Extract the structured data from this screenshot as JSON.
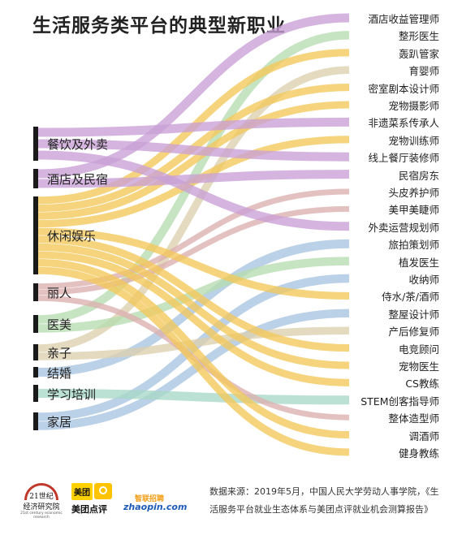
{
  "title": "生活服务类平台的典型新职业",
  "sources": [
    {
      "name": "餐饮及外卖",
      "color": "#1a1a1a"
    },
    {
      "name": "酒店及民宿",
      "color": "#1a1a1a"
    },
    {
      "name": "休闲娱乐",
      "color": "#1a1a1a"
    },
    {
      "name": "丽人",
      "color": "#1a1a1a"
    },
    {
      "name": "医美",
      "color": "#1a1a1a"
    },
    {
      "name": "亲子",
      "color": "#1a1a1a"
    },
    {
      "name": "结婚",
      "color": "#1a1a1a"
    },
    {
      "name": "学习培训",
      "color": "#1a1a1a"
    },
    {
      "name": "家居",
      "color": "#1a1a1a"
    }
  ],
  "targets": [
    "酒店收益管理师",
    "整形医生",
    "轰趴管家",
    "育婴师",
    "密室剧本设计师",
    "宠物摄影师",
    "非遗菜系传承人",
    "宠物训练师",
    "线上餐厅装修师",
    "民宿房东",
    "头皮养护师",
    "美甲美睫师",
    "外卖运营规划师",
    "旅拍策划师",
    "植发医生",
    "收纳师",
    "侍水/茶/酒师",
    "整屋设计师",
    "产后修复师",
    "电竞顾问",
    "宠物医生",
    "CS教练",
    "STEM创客指导师",
    "整体造型师",
    "调酒师",
    "健身教练"
  ],
  "links": [
    {
      "source": "酒店及民宿",
      "target": "酒店收益管理师",
      "color": "#c9a0d6"
    },
    {
      "source": "医美",
      "target": "整形医生",
      "color": "#b6ddb0"
    },
    {
      "source": "休闲娱乐",
      "target": "轰趴管家",
      "color": "#f3c85a"
    },
    {
      "source": "亲子",
      "target": "育婴师",
      "color": "#ddd0ae"
    },
    {
      "source": "休闲娱乐",
      "target": "密室剧本设计师",
      "color": "#f3c85a"
    },
    {
      "source": "休闲娱乐",
      "target": "宠物摄影师",
      "color": "#f3c85a"
    },
    {
      "source": "餐饮及外卖",
      "target": "非遗菜系传承人",
      "color": "#c9a0d6"
    },
    {
      "source": "休闲娱乐",
      "target": "宠物训练师",
      "color": "#f3c85a"
    },
    {
      "source": "餐饮及外卖",
      "target": "线上餐厅装修师",
      "color": "#c9a0d6"
    },
    {
      "source": "酒店及民宿",
      "target": "民宿房东",
      "color": "#c9a0d6"
    },
    {
      "source": "丽人",
      "target": "头皮养护师",
      "color": "#dcb0b0"
    },
    {
      "source": "丽人",
      "target": "美甲美睫师",
      "color": "#dcb0b0"
    },
    {
      "source": "餐饮及外卖",
      "target": "外卖运营规划师",
      "color": "#c9a0d6"
    },
    {
      "source": "结婚",
      "target": "旅拍策划师",
      "color": "#a8c4e0"
    },
    {
      "source": "医美",
      "target": "植发医生",
      "color": "#b6ddb0"
    },
    {
      "source": "家居",
      "target": "收纳师",
      "color": "#a8c4e0"
    },
    {
      "source": "休闲娱乐",
      "target": "侍水/茶/酒师",
      "color": "#f3c85a"
    },
    {
      "source": "家居",
      "target": "整屋设计师",
      "color": "#a8c4e0"
    },
    {
      "source": "亲子",
      "target": "产后修复师",
      "color": "#ddd0ae"
    },
    {
      "source": "休闲娱乐",
      "target": "电竞顾问",
      "color": "#f3c85a"
    },
    {
      "source": "休闲娱乐",
      "target": "宠物医生",
      "color": "#f3c85a"
    },
    {
      "source": "休闲娱乐",
      "target": "CS教练",
      "color": "#f3c85a"
    },
    {
      "source": "学习培训",
      "target": "STEM创客指导师",
      "color": "#a8d8c8"
    },
    {
      "source": "丽人",
      "target": "整体造型师",
      "color": "#dcb0b0"
    },
    {
      "source": "休闲娱乐",
      "target": "调酒师",
      "color": "#f3c85a"
    },
    {
      "source": "休闲娱乐",
      "target": "健身教练",
      "color": "#f3c85a"
    }
  ],
  "logos": {
    "logo_21_line1": "21世纪",
    "logo_21_line2": "经济研究院",
    "logo_21_line3": "21st century economic research",
    "meituan_badge": "美团",
    "meituan_dianping": "美团点评",
    "zhaopin_cn": "智联招聘",
    "zhaopin_url": "zhaopin.com"
  },
  "source_note": "数据来源：2019年5月，中国人民大学劳动人事学院，《生活服务平台就业生态体系与美团点评就业机会测算报告》"
}
